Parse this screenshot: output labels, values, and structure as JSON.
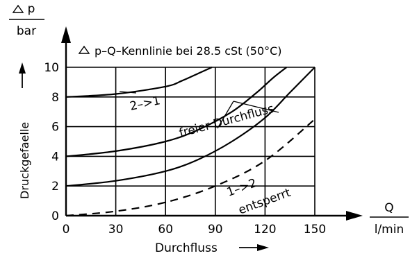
{
  "chart_data": {
    "type": "line",
    "title": "p–Q–Kennlinie bei 28.5 cSt (50°C)",
    "title_symbol": "triangle",
    "xlabel": "Durchfluss",
    "ylabel": "Druckgefaelle",
    "x_unit": {
      "top": "Q",
      "bottom": "l/min"
    },
    "y_unit": {
      "top": "p",
      "bottom": "bar"
    },
    "y_unit_symbol": "triangle",
    "xlim": [
      0,
      150
    ],
    "ylim": [
      0,
      10
    ],
    "x_ticks": [
      "0",
      "30",
      "60",
      "90",
      "120",
      "150"
    ],
    "y_ticks": [
      "0",
      "2",
      "4",
      "6",
      "8",
      "10"
    ],
    "grid": true,
    "series": [
      {
        "key": "s1",
        "dash": "solid",
        "points": [
          [
            0,
            8.0
          ],
          [
            30,
            8.2
          ],
          [
            60,
            8.7
          ],
          [
            70,
            9.1
          ],
          [
            80,
            9.6
          ],
          [
            88,
            10.0
          ]
        ]
      },
      {
        "key": "s2",
        "dash": "solid",
        "points": [
          [
            0,
            4.0
          ],
          [
            30,
            4.35
          ],
          [
            60,
            5.0
          ],
          [
            80,
            5.8
          ],
          [
            100,
            7.0
          ],
          [
            115,
            8.3
          ],
          [
            125,
            9.3
          ],
          [
            133,
            10.0
          ]
        ]
      },
      {
        "key": "s3",
        "dash": "solid",
        "points": [
          [
            0,
            2.0
          ],
          [
            30,
            2.35
          ],
          [
            60,
            3.0
          ],
          [
            80,
            3.8
          ],
          [
            100,
            5.0
          ],
          [
            120,
            6.6
          ],
          [
            135,
            8.3
          ],
          [
            150,
            10.0
          ]
        ]
      },
      {
        "key": "s4",
        "dash": "dashed",
        "points": [
          [
            0,
            0.0
          ],
          [
            30,
            0.3
          ],
          [
            60,
            0.9
          ],
          [
            90,
            2.0
          ],
          [
            120,
            3.7
          ],
          [
            150,
            6.5
          ]
        ]
      }
    ],
    "annotations": [
      {
        "text": "2–>1",
        "x": 39,
        "y": 7.1,
        "rotate": -12
      },
      {
        "text": "freier Durchfluss",
        "x": 69,
        "y": 5.3,
        "rotate": -15
      },
      {
        "text": "1–>2",
        "x": 98,
        "y": 1.3,
        "rotate": -20
      },
      {
        "text": "entsperrt",
        "x": 105,
        "y": 0.1,
        "rotate": -20
      }
    ]
  }
}
